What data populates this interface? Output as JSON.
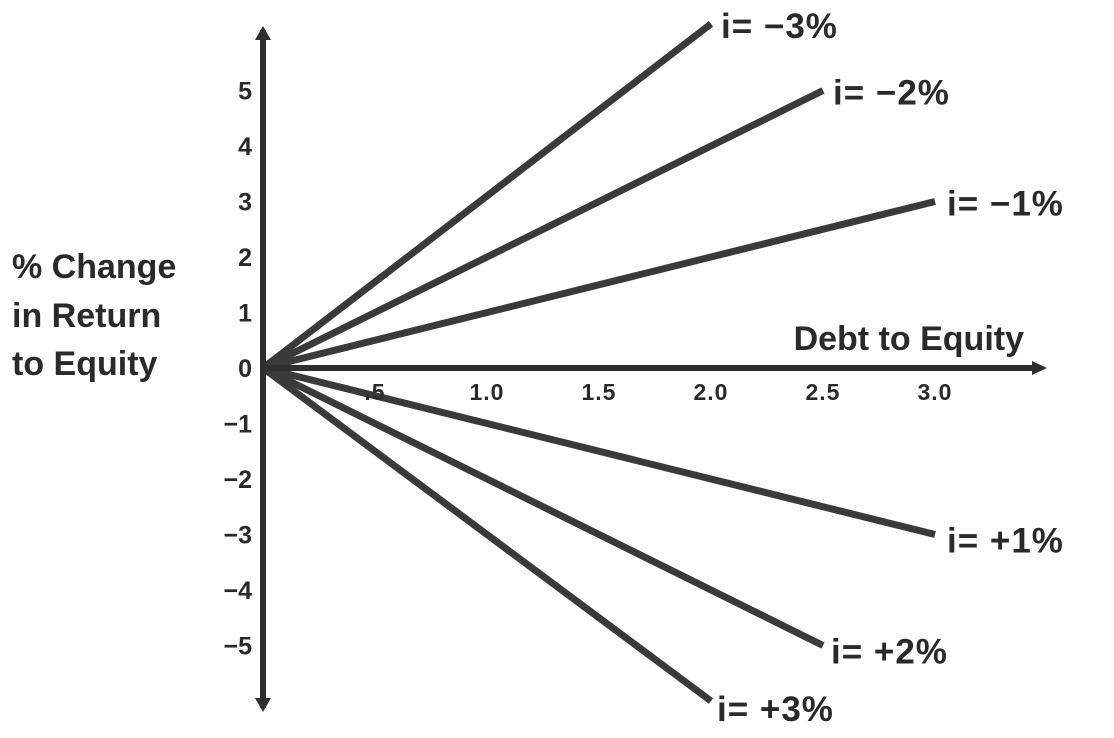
{
  "chart_data": {
    "type": "line",
    "xlabel": "Debt to Equity",
    "ylabel_lines": [
      "% Change",
      "in Return",
      "to Equity"
    ],
    "xlim": [
      0,
      3.45
    ],
    "ylim": [
      -5.5,
      5.5
    ],
    "x_ticks": [
      {
        "value": 0.5,
        "label": ".5"
      },
      {
        "value": 1.0,
        "label": "1.0"
      },
      {
        "value": 1.5,
        "label": "1.5"
      },
      {
        "value": 2.0,
        "label": "2.0"
      },
      {
        "value": 2.5,
        "label": "2.5"
      },
      {
        "value": 3.0,
        "label": "3.0"
      }
    ],
    "y_ticks": [
      {
        "value": 5,
        "label": "5"
      },
      {
        "value": 4,
        "label": "4"
      },
      {
        "value": 3,
        "label": "3"
      },
      {
        "value": 2,
        "label": "2"
      },
      {
        "value": 1,
        "label": "1"
      },
      {
        "value": 0,
        "label": "0"
      },
      {
        "value": -1,
        "label": "−1"
      },
      {
        "value": -2,
        "label": "−2"
      },
      {
        "value": -3,
        "label": "−3"
      },
      {
        "value": -4,
        "label": "−4"
      },
      {
        "value": -5,
        "label": "−5"
      }
    ],
    "series": [
      {
        "name": "i= −3%",
        "points": [
          [
            0,
            0
          ],
          [
            2.0,
            6.2
          ]
        ]
      },
      {
        "name": "i= −2%",
        "points": [
          [
            0,
            0
          ],
          [
            2.5,
            5.0
          ]
        ]
      },
      {
        "name": "i= −1%",
        "points": [
          [
            0,
            0
          ],
          [
            3.0,
            3.0
          ]
        ]
      },
      {
        "name": "i= +1%",
        "points": [
          [
            0,
            0
          ],
          [
            3.0,
            -3.0
          ]
        ]
      },
      {
        "name": "i= +2%",
        "points": [
          [
            0,
            0
          ],
          [
            2.5,
            -5.0
          ]
        ]
      },
      {
        "name": "i= +3%",
        "points": [
          [
            0,
            0
          ],
          [
            2.0,
            -6.0
          ]
        ]
      }
    ],
    "grid": false,
    "legend": "none"
  }
}
